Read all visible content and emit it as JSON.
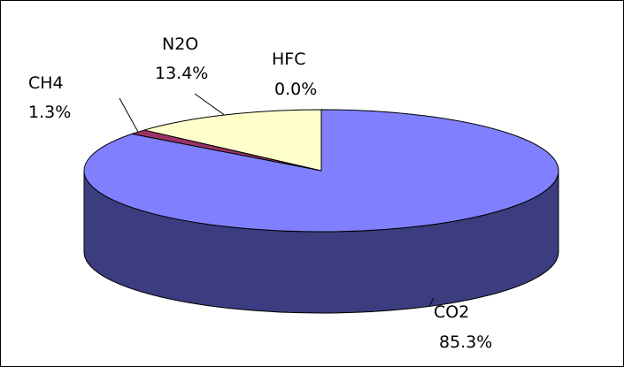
{
  "chart_data": {
    "type": "pie",
    "style": "3d",
    "slices": [
      {
        "label": "CO2",
        "value_text": "85.3%",
        "value": 85.3,
        "color": "#8080ff",
        "side_color": "#3c3c80"
      },
      {
        "label": "CH4",
        "value_text": "1.3%",
        "value": 1.3,
        "color": "#993366",
        "side_color": "#4d1a33"
      },
      {
        "label": "N2O",
        "value_text": "13.4%",
        "value": 13.4,
        "color": "#ffffcc",
        "side_color": "#808066"
      },
      {
        "label": "HFC",
        "value_text": "0.0%",
        "value": 0.0,
        "color": "#a0e0e0",
        "side_color": "#507070"
      }
    ],
    "legend": "none",
    "outline_color": "#000000"
  }
}
